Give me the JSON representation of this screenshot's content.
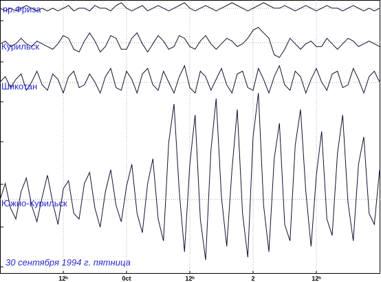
{
  "chart_data": {
    "type": "line",
    "annotation": "30 сентября 1994 г. пятница",
    "x": [
      0,
      1,
      2,
      3,
      4,
      5,
      6,
      7,
      8,
      9,
      10,
      11,
      12,
      13,
      14,
      15,
      16,
      17,
      18,
      19,
      20,
      21,
      22,
      23,
      24,
      25,
      26,
      27,
      28,
      29,
      30,
      31,
      32,
      33,
      34,
      35,
      36,
      37,
      38,
      39,
      40,
      41,
      42,
      43,
      44,
      45,
      46,
      47,
      48,
      49,
      50,
      51,
      52,
      53,
      54,
      55,
      56,
      57,
      58,
      59,
      60,
      61,
      62,
      63,
      64,
      65,
      66,
      67,
      68,
      69,
      70,
      71,
      72
    ],
    "xlim": [
      0,
      72
    ],
    "xticks": [
      {
        "value": 12,
        "label": "12ʰ"
      },
      {
        "value": 24,
        "label": "0ct"
      },
      {
        "value": 36,
        "label": "12ʰ"
      },
      {
        "value": 48,
        "label": "2"
      },
      {
        "value": 60,
        "label": "12ʰ"
      }
    ],
    "ylim": [
      0,
      100
    ],
    "grid": true,
    "series": [
      {
        "name": "пр.Фриза",
        "color": "#101030",
        "values": [
          97,
          96,
          97,
          96,
          97,
          98,
          97,
          96,
          97,
          96,
          97,
          96,
          97,
          98,
          96,
          97,
          97,
          96,
          98,
          97,
          97,
          96,
          98,
          99,
          97,
          96,
          97,
          98,
          96,
          97,
          98,
          97,
          96,
          97,
          98,
          99,
          97,
          96,
          97,
          98,
          97,
          96,
          97,
          98,
          99,
          98,
          97,
          96,
          97,
          98,
          99,
          98,
          97,
          97,
          98,
          97,
          96,
          97,
          98,
          97,
          96,
          97,
          98,
          97,
          97,
          96,
          97,
          98,
          97,
          96,
          97,
          96,
          97
        ]
      },
      {
        "name": "Курильск",
        "color": "#101030",
        "values": [
          84,
          85,
          83,
          84,
          86,
          84,
          83,
          85,
          84,
          83,
          82,
          84,
          87,
          86,
          82,
          81,
          85,
          88,
          85,
          81,
          83,
          87,
          86,
          82,
          82,
          86,
          88,
          84,
          81,
          84,
          87,
          85,
          82,
          83,
          87,
          86,
          83,
          82,
          85,
          87,
          84,
          82,
          84,
          86,
          85,
          83,
          84,
          86,
          89,
          90,
          88,
          86,
          80,
          79,
          82,
          86,
          84,
          82,
          84,
          85,
          83,
          83,
          86,
          84,
          82,
          84,
          86,
          85,
          83,
          84,
          85,
          84,
          83
        ]
      },
      {
        "name": "Шикотан",
        "color": "#101030",
        "values": [
          70,
          72,
          68,
          71,
          73,
          67,
          70,
          74,
          69,
          67,
          73,
          71,
          66,
          72,
          74,
          68,
          69,
          73,
          70,
          66,
          72,
          75,
          68,
          67,
          74,
          71,
          66,
          73,
          75,
          69,
          67,
          74,
          70,
          66,
          72,
          76,
          68,
          66,
          74,
          72,
          67,
          71,
          75,
          69,
          66,
          73,
          74,
          68,
          67,
          75,
          71,
          66,
          72,
          76,
          69,
          67,
          74,
          72,
          66,
          71,
          75,
          70,
          67,
          73,
          74,
          68,
          69,
          75,
          71,
          66,
          72,
          74,
          70
        ]
      },
      {
        "name": "Южно-Курильск",
        "color": "#101030",
        "values": [
          27,
          33,
          24,
          20,
          30,
          35,
          25,
          19,
          28,
          36,
          26,
          18,
          31,
          34,
          22,
          20,
          33,
          37,
          24,
          17,
          30,
          38,
          25,
          19,
          32,
          40,
          22,
          15,
          33,
          42,
          20,
          12,
          48,
          62,
          30,
          8,
          40,
          58,
          20,
          5,
          45,
          64,
          28,
          10,
          38,
          60,
          22,
          6,
          50,
          66,
          25,
          8,
          42,
          55,
          18,
          12,
          47,
          60,
          30,
          10,
          36,
          52,
          20,
          14,
          44,
          58,
          26,
          12,
          40,
          50,
          22,
          18,
          38
        ]
      }
    ]
  }
}
